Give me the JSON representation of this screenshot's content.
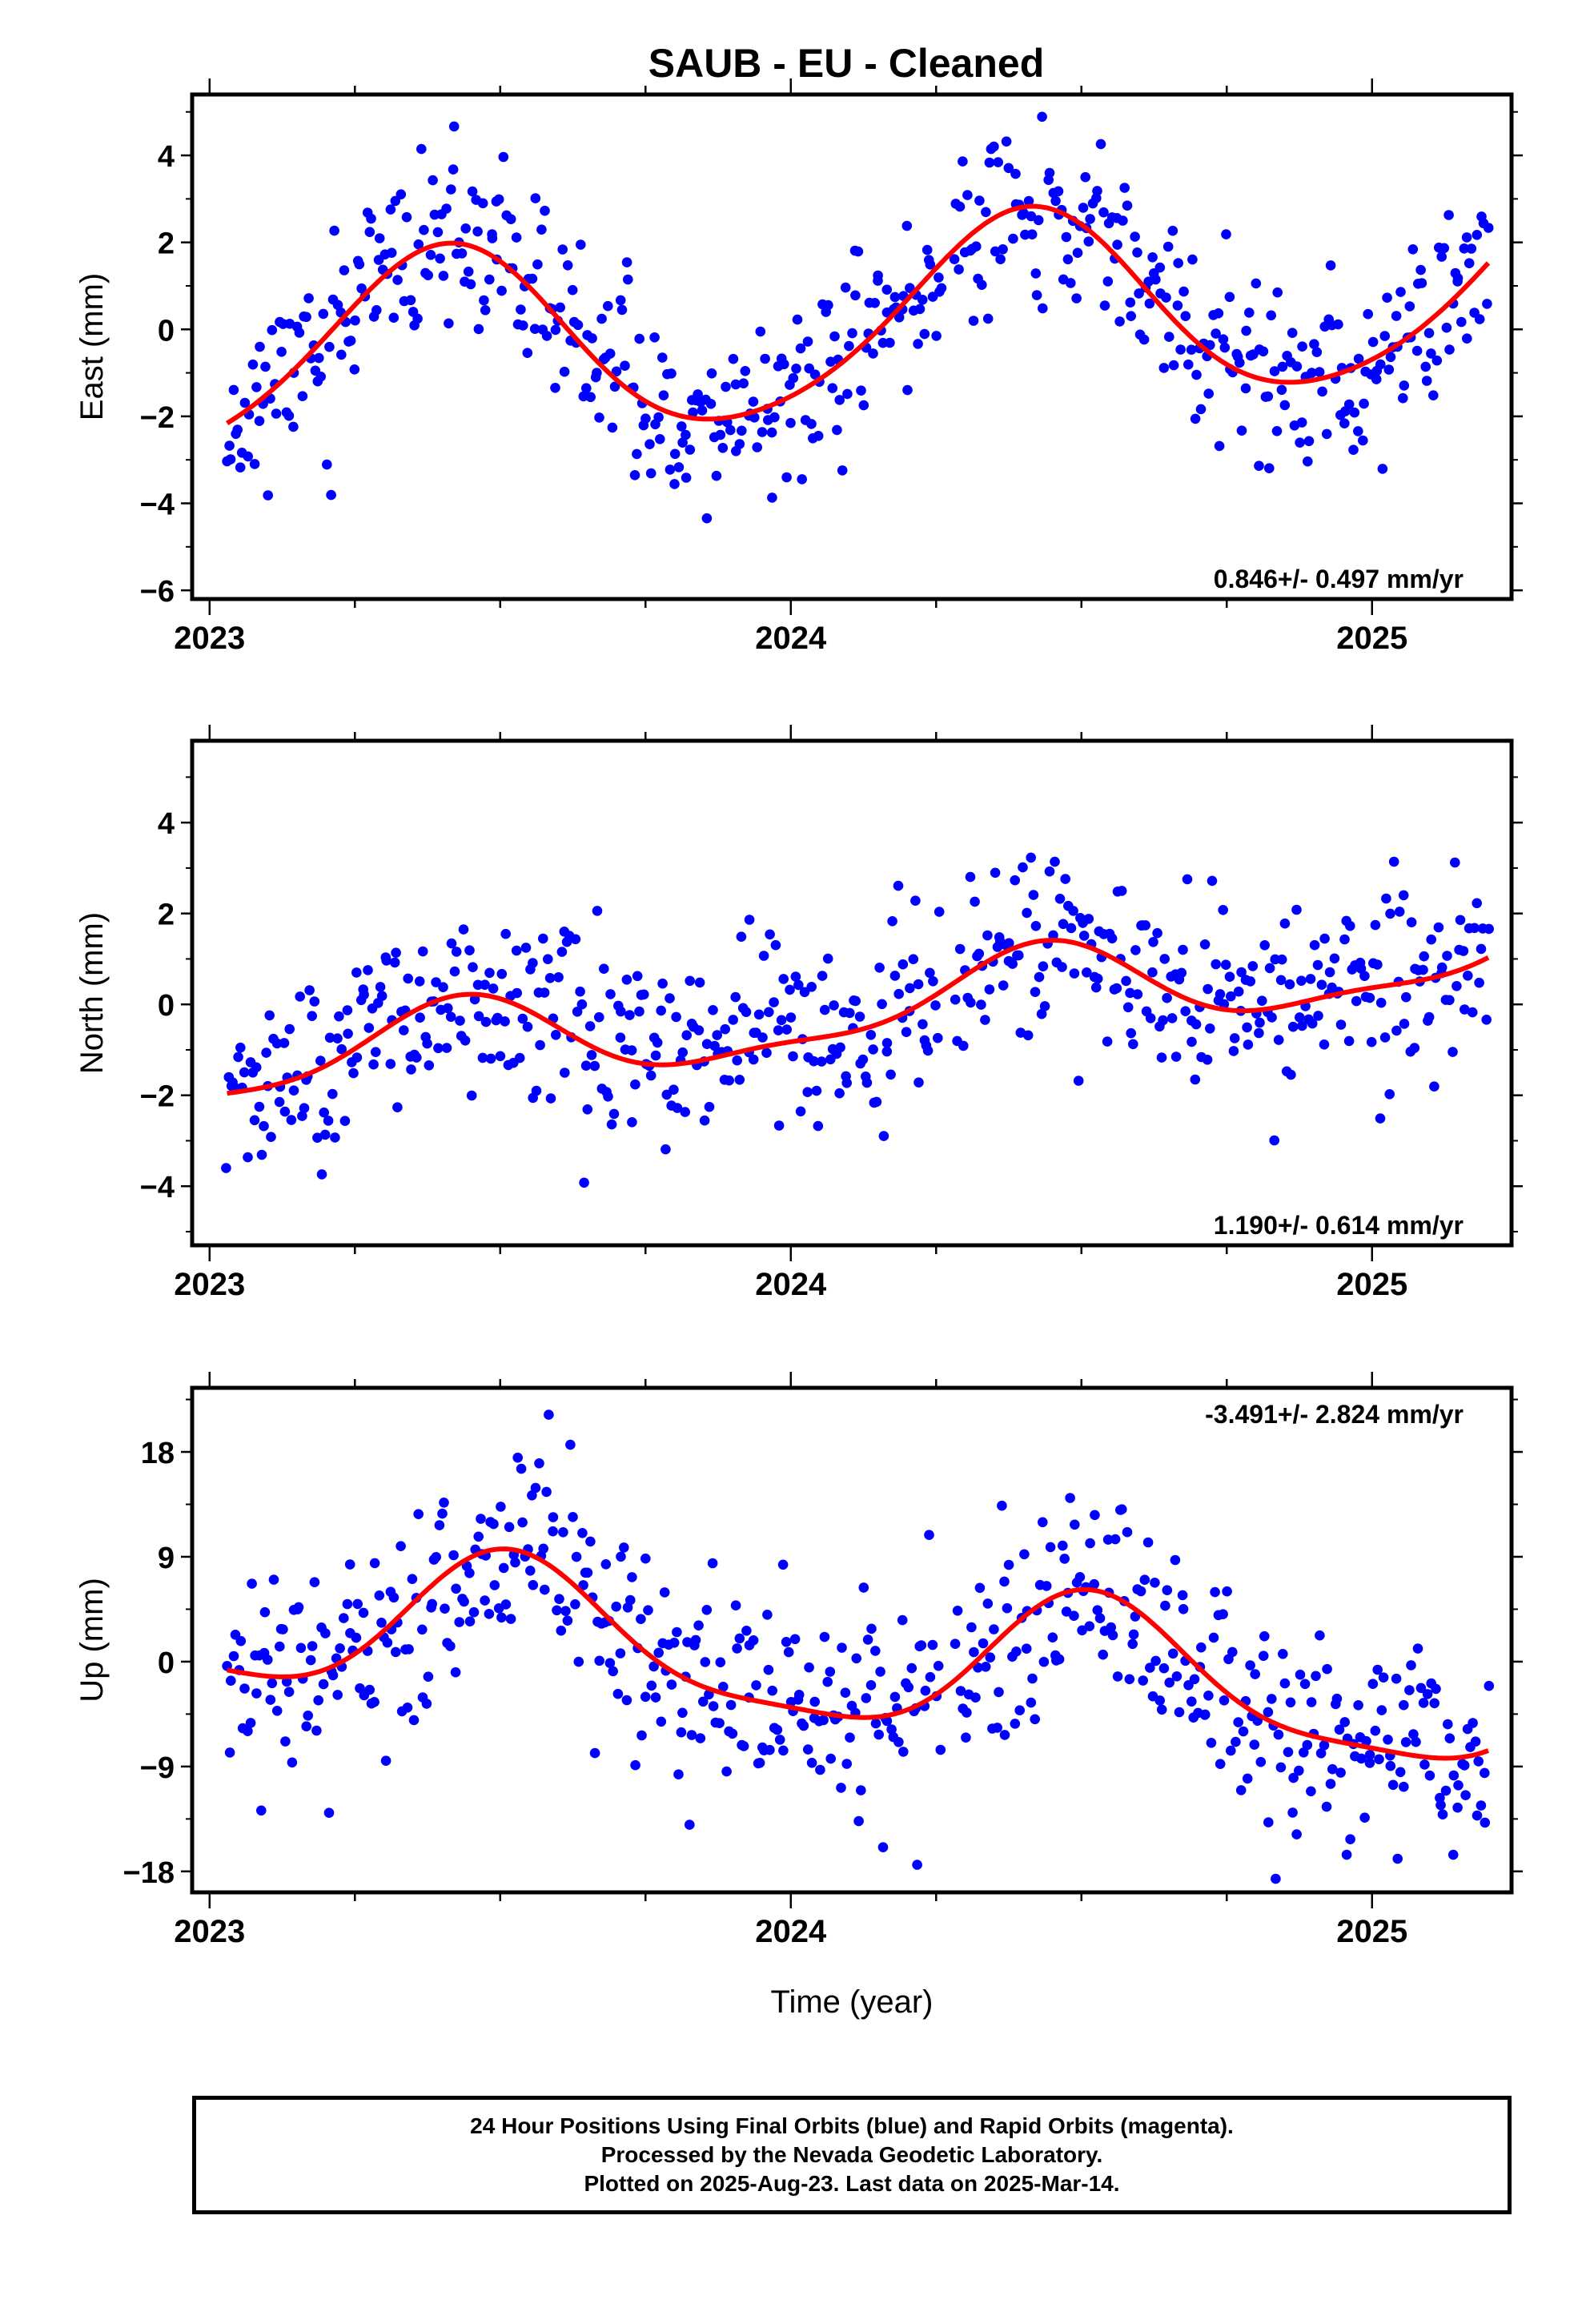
{
  "title": "SAUB  - EU - Cleaned",
  "colors": {
    "final_orbit_dots": "#0000ff",
    "model_curve": "#ff0000",
    "frame": "#000000"
  },
  "chart_data": [
    {
      "type": "scatter",
      "ylabel": "East (mm)",
      "xlabel": "",
      "xlim": [
        2022.97,
        2025.24
      ],
      "ylim": [
        -6.2,
        5.4
      ],
      "xticks": [
        "2023",
        "2024",
        "2025"
      ],
      "yticks": [
        "4",
        "2",
        "0",
        "−2",
        "−4",
        "−6"
      ],
      "rate_label": "0.846+/- 0.497 mm/yr",
      "rate_position": "bottom-right",
      "model": {
        "mean": 0.05,
        "trend": 0.846,
        "ann_amp": 2.2,
        "ann_phase": -2.5,
        "semi_amp": 0.25,
        "semi_phase": 0.8,
        "dev": 0.0
      },
      "scatter": {
        "sd": 1.0,
        "count": 560,
        "seed": 11
      },
      "series": [
        {
          "style": "dots",
          "color": "#0000ff"
        },
        {
          "style": "line",
          "color": "#ff0000"
        }
      ]
    },
    {
      "type": "scatter",
      "ylabel": "North (mm)",
      "xlabel": "",
      "xlim": [
        2022.97,
        2025.24
      ],
      "ylim": [
        -5.3,
        5.8
      ],
      "xticks": [
        "2023",
        "2024",
        "2025"
      ],
      "yticks": [
        "4",
        "2",
        "0",
        "−2",
        "−4"
      ],
      "rate_label": "1.190+/- 0.614 mm/yr",
      "rate_position": "bottom-right",
      "model": {
        "mean": -0.3,
        "trend": 1.19,
        "ann_amp": 0.9,
        "ann_phase": -2.6,
        "semi_amp": 0.3,
        "semi_phase": 0.6,
        "dev": 0.0
      },
      "scatter": {
        "sd": 1.05,
        "count": 560,
        "seed": 23
      },
      "series": [
        {
          "style": "dots",
          "color": "#0000ff"
        },
        {
          "style": "line",
          "color": "#ff0000"
        }
      ]
    },
    {
      "type": "scatter",
      "ylabel": "Up (mm)",
      "xlabel": "Time (year)",
      "xlim": [
        2022.97,
        2025.24
      ],
      "ylim": [
        -19.8,
        23.5
      ],
      "xticks": [
        "2023",
        "2024",
        "2025"
      ],
      "yticks": [
        "18",
        "9",
        "0",
        "−9",
        "−18"
      ],
      "rate_label": "-3.491+/- 2.824 mm/yr",
      "rate_position": "top-right",
      "model": {
        "mean": 0.5,
        "trend": -3.491,
        "ann_amp": 6.0,
        "ann_phase": -3.3,
        "semi_amp": 1.5,
        "semi_phase": 0.0,
        "dev": 0.0
      },
      "scatter": {
        "sd": 4.6,
        "count": 560,
        "seed": 37
      },
      "series": [
        {
          "style": "dots",
          "color": "#0000ff"
        },
        {
          "style": "line",
          "color": "#ff0000"
        }
      ]
    }
  ],
  "footer": {
    "line1": "24 Hour Positions Using Final Orbits (blue) and Rapid Orbits (magenta).",
    "line2": "Processed by the Nevada Geodetic Laboratory.",
    "line3": "Plotted on 2025-Aug-23. Last data on 2025-Mar-14."
  }
}
